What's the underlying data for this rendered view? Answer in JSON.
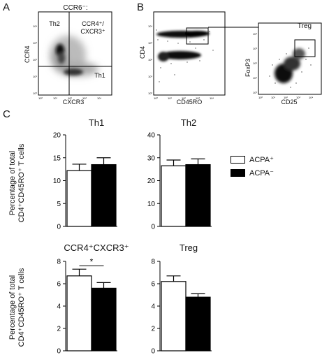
{
  "panel_labels": {
    "a": "A",
    "b": "B",
    "c": "C"
  },
  "flow": {
    "panel_a": {
      "title": "CCR6⁻:",
      "ylabel": "CCR4",
      "xlabel": "CXCR3",
      "gates": {
        "top_left": "Th2",
        "top_right_1": "CCR4⁺/",
        "top_right_2": "CXCR3⁺",
        "bottom_right": "Th1"
      }
    },
    "panel_b1": {
      "ylabel": "CD4",
      "xlabel": "CD45RO"
    },
    "panel_b2": {
      "ylabel": "FoxP3",
      "xlabel": "CD25",
      "gate": "Treg"
    }
  },
  "bar_ylabel_line1": "Percentage of total",
  "bar_ylabel_line2": "CD4⁺CD45RO⁺ T cells",
  "legend": [
    {
      "name": "ACPA⁺",
      "color": "#ffffff"
    },
    {
      "name": "ACPA⁻",
      "color": "#000000"
    }
  ],
  "significance_marker": "*",
  "chart_data": [
    {
      "type": "bar",
      "title": "Th1",
      "categories": [
        "ACPA⁺",
        "ACPA⁻"
      ],
      "values": [
        12.2,
        13.5
      ],
      "errors": [
        1.4,
        1.5
      ],
      "ylim": [
        0,
        20
      ],
      "yticks": [
        "0",
        "5",
        "10",
        "15",
        "20"
      ]
    },
    {
      "type": "bar",
      "title": "Th2",
      "categories": [
        "ACPA⁺",
        "ACPA⁻"
      ],
      "values": [
        26.5,
        27.0
      ],
      "errors": [
        2.5,
        2.5
      ],
      "ylim": [
        0,
        40
      ],
      "yticks": [
        "0",
        "10",
        "20",
        "30",
        "40"
      ]
    },
    {
      "type": "bar",
      "title": "CCR4⁺CXCR3⁺",
      "categories": [
        "ACPA⁺",
        "ACPA⁻"
      ],
      "values": [
        6.7,
        5.6
      ],
      "errors": [
        0.6,
        0.5
      ],
      "ylim": [
        0,
        8
      ],
      "yticks": [
        "0",
        "2",
        "4",
        "6",
        "8"
      ]
    },
    {
      "type": "bar",
      "title": "Treg",
      "categories": [
        "ACPA⁺",
        "ACPA⁻"
      ],
      "values": [
        6.2,
        4.8
      ],
      "errors": [
        0.5,
        0.3
      ],
      "ylim": [
        0,
        8
      ],
      "yticks": [
        "0",
        "2",
        "4",
        "6",
        "8"
      ]
    }
  ]
}
